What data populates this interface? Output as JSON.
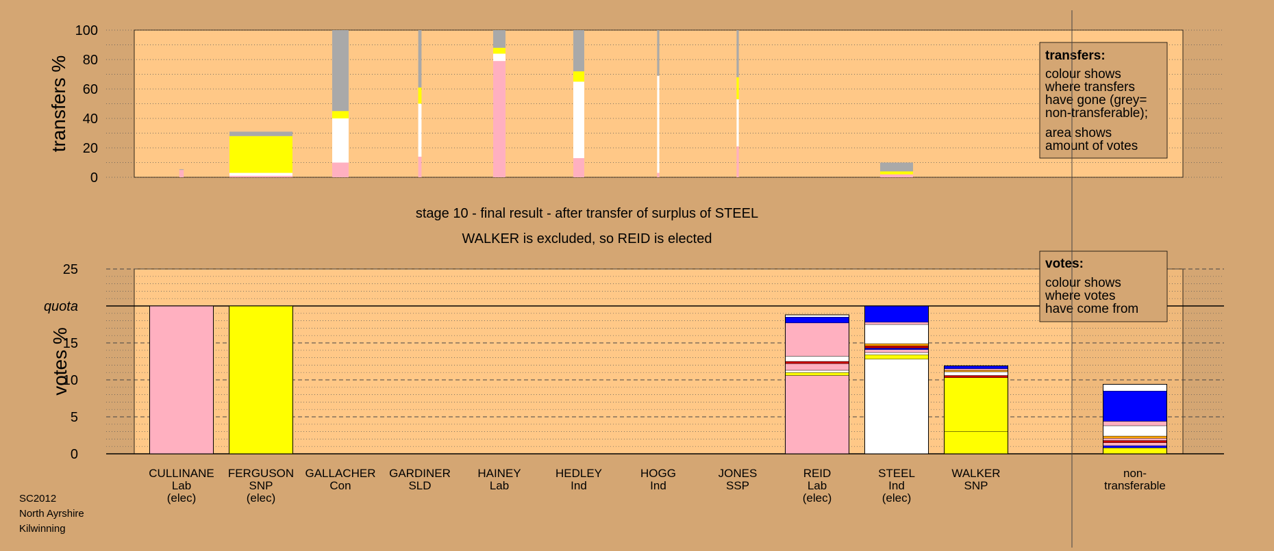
{
  "chart_data": [
    {
      "type": "bar",
      "name": "transfers",
      "ylabel": "transfers %",
      "ylim": [
        0,
        100
      ],
      "yticks": [
        0,
        20,
        40,
        60,
        80,
        100
      ],
      "grid": "dotted every 10",
      "legend_box": {
        "title": "transfers:",
        "lines": [
          "colour shows",
          "where transfers",
          "have gone (grey=",
          "non-transferable);",
          "area shows",
          "amount of votes"
        ],
        "placement": "top-right"
      },
      "columns": [
        {
          "candidate": "CULLINANE",
          "transfer_weight": 0.16,
          "segments": [
            {
              "color": "#ffb0c0",
              "value": 5
            },
            {
              "color": "#a9a9a9",
              "value": 0.5
            }
          ]
        },
        {
          "candidate": "FERGUSON",
          "transfer_weight": 2.3,
          "segments": [
            {
              "color": "#ffb0c0",
              "value": 1
            },
            {
              "color": "#ffffff",
              "value": 2
            },
            {
              "color": "#ffff00",
              "value": 25
            },
            {
              "color": "#a9a9a9",
              "value": 3
            }
          ]
        },
        {
          "candidate": "GALLACHER",
          "transfer_weight": 0.6,
          "segments": [
            {
              "color": "#ffb0c0",
              "value": 10
            },
            {
              "color": "#ffffff",
              "value": 30
            },
            {
              "color": "#ffff00",
              "value": 5
            },
            {
              "color": "#a9a9a9",
              "value": 55
            }
          ]
        },
        {
          "candidate": "GARDINER",
          "transfer_weight": 0.12,
          "segments": [
            {
              "color": "#ffb0c0",
              "value": 14
            },
            {
              "color": "#ffffff",
              "value": 36
            },
            {
              "color": "#ffff00",
              "value": 11
            },
            {
              "color": "#a9a9a9",
              "value": 39
            }
          ]
        },
        {
          "candidate": "HAINEY",
          "transfer_weight": 0.45,
          "segments": [
            {
              "color": "#ffb0c0",
              "value": 79
            },
            {
              "color": "#ffffff",
              "value": 5
            },
            {
              "color": "#ffff00",
              "value": 4
            },
            {
              "color": "#a9a9a9",
              "value": 12
            }
          ]
        },
        {
          "candidate": "HEDLEY",
          "transfer_weight": 0.4,
          "segments": [
            {
              "color": "#ffb0c0",
              "value": 13
            },
            {
              "color": "#ffffff",
              "value": 52
            },
            {
              "color": "#ffff00",
              "value": 7
            },
            {
              "color": "#a9a9a9",
              "value": 28
            }
          ]
        },
        {
          "candidate": "HOGG",
          "transfer_weight": 0.08,
          "segments": [
            {
              "color": "#ffb0c0",
              "value": 3
            },
            {
              "color": "#ffffff",
              "value": 66
            },
            {
              "color": "#a9a9a9",
              "value": 31
            }
          ]
        },
        {
          "candidate": "JONES",
          "transfer_weight": 0.08,
          "segments": [
            {
              "color": "#ffb0c0",
              "value": 21
            },
            {
              "color": "#ffffff",
              "value": 32
            },
            {
              "color": "#ffff00",
              "value": 15
            },
            {
              "color": "#a9a9a9",
              "value": 32
            }
          ]
        },
        {
          "candidate": "REID",
          "transfer_weight": 0,
          "segments": []
        },
        {
          "candidate": "STEEL",
          "transfer_weight": 1.2,
          "segments": [
            {
              "color": "#ffb0c0",
              "value": 2
            },
            {
              "color": "#ffff00",
              "value": 2
            },
            {
              "color": "#a9a9a9",
              "value": 6
            }
          ]
        },
        {
          "candidate": "WALKER",
          "transfer_weight": 0,
          "segments": []
        }
      ]
    },
    {
      "type": "bar",
      "name": "votes",
      "ylabel": "votes %",
      "ylim": [
        0,
        25
      ],
      "yticks": [
        "0",
        "5",
        "10",
        "15",
        "quota",
        "25"
      ],
      "quota": 20,
      "grid": "dashed every 5, dotted every 1",
      "legend_box": {
        "title": "votes:",
        "lines": [
          "colour shows",
          "where votes",
          "have come from"
        ],
        "placement": "top-right"
      },
      "columns": [
        {
          "candidate": "CULLINANE",
          "party": "Lab",
          "status": "(elec)",
          "segments": [
            {
              "color": "#ffb0c0",
              "value": 20
            }
          ]
        },
        {
          "candidate": "FERGUSON",
          "party": "SNP",
          "status": "(elec)",
          "segments": [
            {
              "color": "#ffff00",
              "value": 20
            }
          ]
        },
        {
          "candidate": "GALLACHER",
          "party": "Con",
          "status": "",
          "segments": []
        },
        {
          "candidate": "GARDINER",
          "party": "SLD",
          "status": "",
          "segments": []
        },
        {
          "candidate": "HAINEY",
          "party": "Lab",
          "status": "",
          "segments": []
        },
        {
          "candidate": "HEDLEY",
          "party": "Ind",
          "status": "",
          "segments": []
        },
        {
          "candidate": "HOGG",
          "party": "Ind",
          "status": "",
          "segments": []
        },
        {
          "candidate": "JONES",
          "party": "SSP",
          "status": "",
          "segments": []
        },
        {
          "candidate": "REID",
          "party": "Lab",
          "status": "(elec)",
          "segments": [
            {
              "color": "#ffb0c0",
              "value": 10.6
            },
            {
              "color": "#ffff00",
              "value": 0.4
            },
            {
              "color": "#ffffff",
              "value": 0.3
            },
            {
              "color": "#ffb0c0",
              "value": 0.9
            },
            {
              "color": "#cc0000",
              "value": 0.3
            },
            {
              "color": "#ffffff",
              "value": 0.7
            },
            {
              "color": "#ffb0c0",
              "value": 4.5
            },
            {
              "color": "#0000ff",
              "value": 0.8
            },
            {
              "color": "#ffffff",
              "value": 0.3
            }
          ]
        },
        {
          "candidate": "STEEL",
          "party": "Ind",
          "status": "(elec)",
          "segments": [
            {
              "color": "#ffffff",
              "value": 12.8
            },
            {
              "color": "#ffff00",
              "value": 0.6
            },
            {
              "color": "#ffffff",
              "value": 0.3
            },
            {
              "color": "#ffb0c0",
              "value": 0.4
            },
            {
              "color": "#0000ff",
              "value": 0.2
            },
            {
              "color": "#cc0000",
              "value": 0.3
            },
            {
              "color": "#ffa500",
              "value": 0.3
            },
            {
              "color": "#ffffff",
              "value": 2.6
            },
            {
              "color": "#ffb0c0",
              "value": 0.3
            },
            {
              "color": "#0000ff",
              "value": 2.2
            }
          ]
        },
        {
          "candidate": "WALKER",
          "party": "SNP",
          "status": "",
          "segments": [
            {
              "color": "#ffff00",
              "value": 3.0
            },
            {
              "color": "#ffff00",
              "value": 7.3
            },
            {
              "color": "#cc0000",
              "value": 0.3
            },
            {
              "color": "#ffffff",
              "value": 0.5
            },
            {
              "color": "#ffa500",
              "value": 0.2
            },
            {
              "color": "#ffb0c0",
              "value": 0.2
            },
            {
              "color": "#0000ff",
              "value": 0.4
            }
          ]
        },
        {
          "candidate": "non-transferable",
          "party": "",
          "status": "",
          "label_lines": [
            "non-",
            "transferable"
          ],
          "segments": [
            {
              "color": "#ffff00",
              "value": 0.8
            },
            {
              "color": "#0000ff",
              "value": 0.3
            },
            {
              "color": "#ffb0c0",
              "value": 0.4
            },
            {
              "color": "#cc0000",
              "value": 0.3
            },
            {
              "color": "#ffb0c0",
              "value": 0.3
            },
            {
              "color": "#ffa500",
              "value": 0.3
            },
            {
              "color": "#ffffff",
              "value": 1.4
            },
            {
              "color": "#ffb0c0",
              "value": 0.6
            },
            {
              "color": "#0000ff",
              "value": 4.1
            },
            {
              "color": "#ffffff",
              "value": 0.9
            }
          ]
        }
      ]
    }
  ],
  "captions": {
    "line1": "stage 10 - final result - after transfer of surplus of STEEL",
    "line2": "WALKER is excluded, so REID is elected"
  },
  "footer": [
    "SC2012",
    "North Ayrshire",
    "Kilwinning"
  ],
  "colors": {
    "background": "#d4a673",
    "plot_bg": "#ffc887",
    "pink": "#ffb0c0",
    "yellow": "#ffff00",
    "grey": "#a9a9a9",
    "blue": "#0000ff",
    "white": "#ffffff",
    "red": "#cc0000",
    "orange": "#ffa500"
  }
}
